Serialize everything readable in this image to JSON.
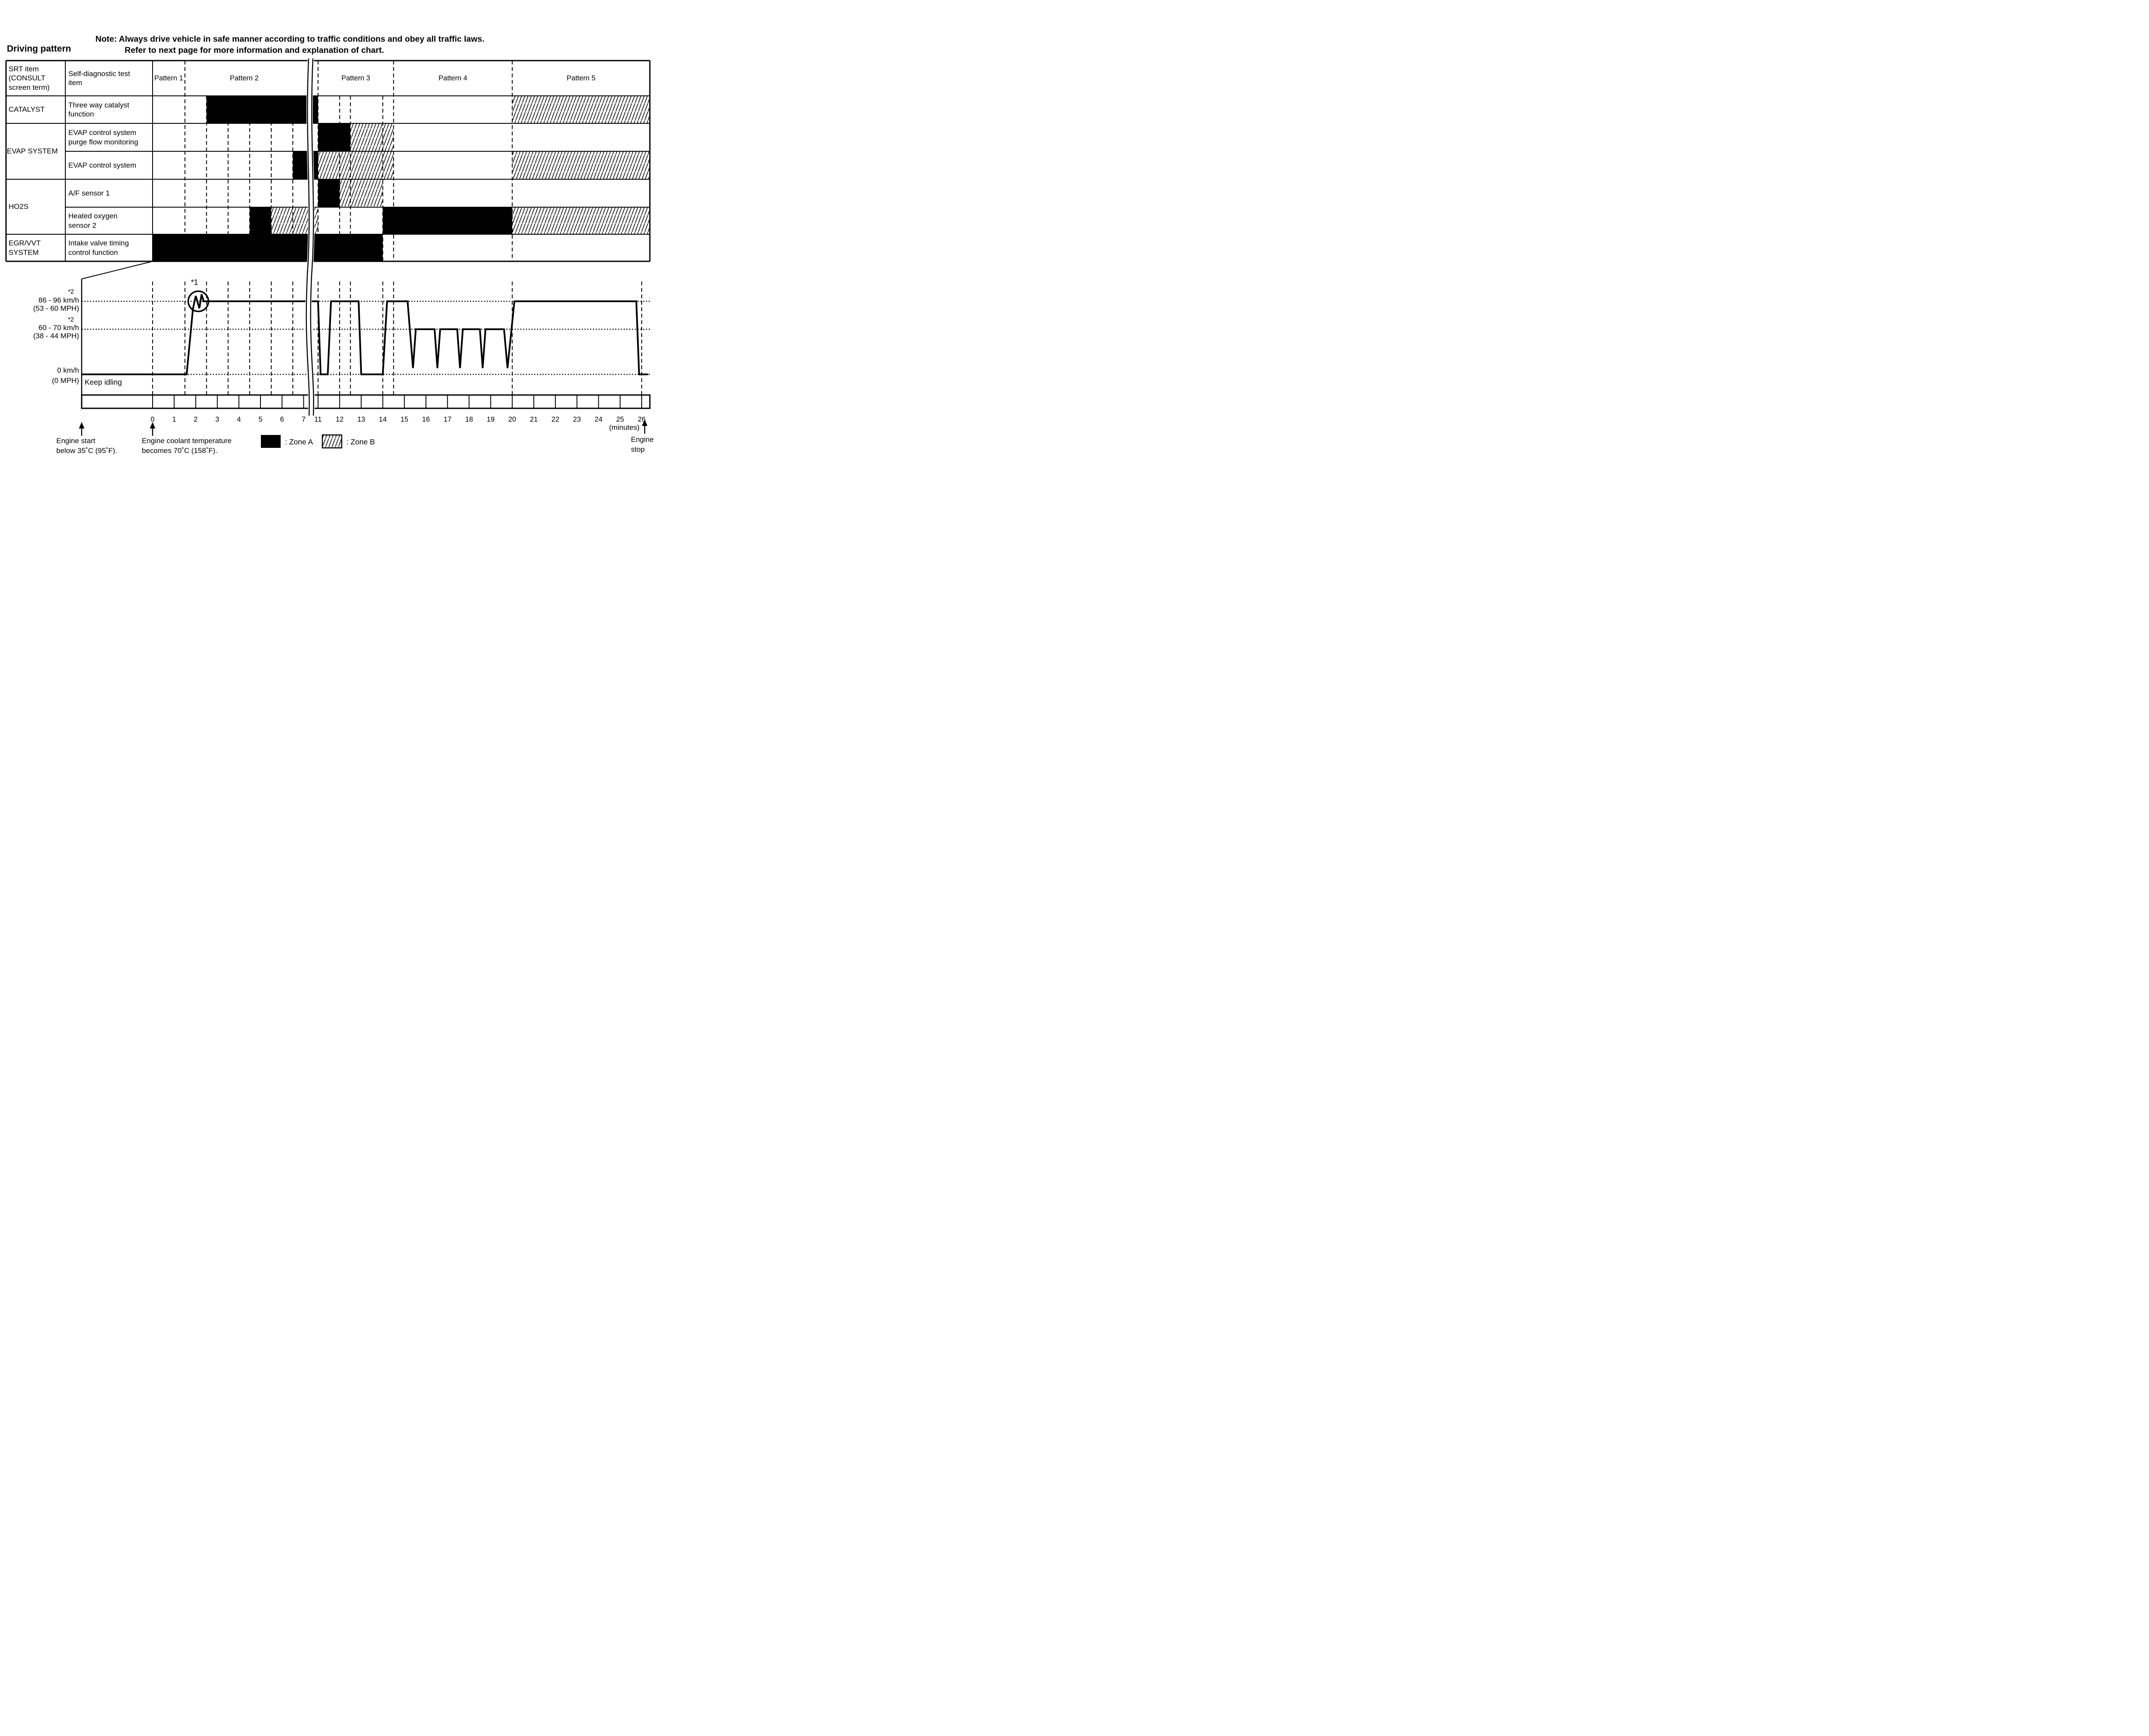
{
  "title": "Driving pattern",
  "note": {
    "line1": "Note: Always drive vehicle in safe manner according to traffic conditions and obey all traffic laws.",
    "line2": "Refer to next page for more information and explanation of chart."
  },
  "table": {
    "headers": {
      "col1": "SRT item\n(CONSULT\nscreen term)",
      "col2": "Self-diagnostic test\nitem"
    },
    "groups": [
      {
        "label": "CATALYST"
      },
      {
        "label": "EVAP SYSTEM"
      },
      {
        "label": "HO2S"
      },
      {
        "label": "EGR/VVT\nSYSTEM"
      }
    ],
    "rows": [
      "Three way catalyst\nfunction",
      "EVAP control system\npurge flow monitoring",
      "EVAP control system",
      "A/F sensor 1",
      "Heated oxygen\nsensor 2",
      "Intake valve timing\ncontrol function"
    ]
  },
  "chart_data": {
    "type": "timeline",
    "x_axis": {
      "unit_label": "(minutes)",
      "ticks": [
        0,
        1,
        2,
        3,
        4,
        5,
        6,
        7,
        11,
        12,
        13,
        14,
        15,
        16,
        17,
        18,
        19,
        20,
        21,
        22,
        23,
        24,
        25,
        26
      ],
      "break_between": [
        7,
        11
      ]
    },
    "patterns": [
      {
        "label": "Pattern 1",
        "from": 0,
        "to": 1.5
      },
      {
        "label": "Pattern 2",
        "from": 1.5,
        "to": 7
      },
      {
        "label": "Pattern 3",
        "from": 11,
        "to": 14.5
      },
      {
        "label": "Pattern 4",
        "from": 14.5,
        "to": 20
      },
      {
        "label": "Pattern 5",
        "from": 20,
        "to": "end"
      }
    ],
    "rows": [
      {
        "row": 0,
        "srt_item": "CATALYST",
        "test_item": "Three way catalyst function",
        "zones": [
          {
            "zone": "A",
            "from": 2.5,
            "to": 11
          },
          {
            "zone": "B",
            "from": 20,
            "to": "end"
          }
        ]
      },
      {
        "row": 1,
        "srt_item": "EVAP SYSTEM",
        "test_item": "EVAP control system purge flow monitoring",
        "zones": [
          {
            "zone": "A",
            "from": 11,
            "to": 12.5
          },
          {
            "zone": "B",
            "from": 12.5,
            "to": 14.5
          }
        ]
      },
      {
        "row": 2,
        "srt_item": "EVAP SYSTEM",
        "test_item": "EVAP control system",
        "zones": [
          {
            "zone": "A",
            "from": 6.5,
            "to": 11
          },
          {
            "zone": "B",
            "from": 11,
            "to": 14.5
          },
          {
            "zone": "B",
            "from": 20,
            "to": "end"
          }
        ]
      },
      {
        "row": 3,
        "srt_item": "HO2S",
        "test_item": "A/F sensor 1",
        "zones": [
          {
            "zone": "A",
            "from": 11,
            "to": 12
          },
          {
            "zone": "B",
            "from": 12,
            "to": 14
          }
        ]
      },
      {
        "row": 4,
        "srt_item": "HO2S",
        "test_item": "Heated oxygen sensor 2",
        "zones": [
          {
            "zone": "A",
            "from": 4.5,
            "to": 5.5
          },
          {
            "zone": "B",
            "from": 5.5,
            "to": 11
          },
          {
            "zone": "A",
            "from": 14,
            "to": 20
          },
          {
            "zone": "B",
            "from": 20,
            "to": "end"
          }
        ]
      },
      {
        "row": 5,
        "srt_item": "EGR/VVT SYSTEM",
        "test_item": "Intake valve timing control function",
        "zones": [
          {
            "zone": "A",
            "from": 0,
            "to": 14
          }
        ]
      }
    ],
    "dashed_gridlines": {
      "table_full_height_minutes": [
        1.5,
        11,
        14.5,
        20
      ],
      "table_body_minutes": [
        2.5,
        3.5,
        4.5,
        5.5,
        6.5,
        12,
        12.5,
        14
      ],
      "graph_minutes": [
        0,
        1.5,
        2.5,
        3.5,
        4.5,
        5.5,
        6.5,
        11,
        12,
        12.5,
        14,
        14.5,
        20,
        26
      ]
    },
    "speed_axis": {
      "high": {
        "sup": "*2",
        "kmh": "86 - 96 km/h",
        "mph": "(53 - 60 MPH)",
        "value": 91
      },
      "mid": {
        "sup": "*2",
        "kmh": "60 - 70 km/h",
        "mph": "(38 - 44 MPH)",
        "value": 65
      },
      "zero": {
        "kmh": "0 km/h",
        "mph": "(0 MPH)",
        "value": 0
      },
      "keep_idling": "Keep idling"
    },
    "speed_profile_points": [
      [
        -3.29,
        0
      ],
      [
        1.58,
        0
      ],
      [
        1.87,
        84
      ],
      [
        2.0,
        96
      ],
      [
        2.17,
        84.5
      ],
      [
        2.27,
        97.5
      ],
      [
        2.37,
        91
      ],
      [
        11.0,
        91
      ],
      [
        11.12,
        0
      ],
      [
        11.45,
        0
      ],
      [
        11.6,
        91
      ],
      [
        12.88,
        91
      ],
      [
        13.0,
        0
      ],
      [
        14.0,
        0
      ],
      [
        14.2,
        91
      ],
      [
        15.15,
        91
      ],
      [
        15.4,
        9
      ],
      [
        15.53,
        65
      ],
      [
        16.4,
        65
      ],
      [
        16.53,
        9
      ],
      [
        16.66,
        65
      ],
      [
        17.45,
        65
      ],
      [
        17.58,
        9
      ],
      [
        17.71,
        65
      ],
      [
        18.5,
        65
      ],
      [
        18.63,
        9
      ],
      [
        18.76,
        65
      ],
      [
        19.62,
        65
      ],
      [
        19.78,
        9
      ],
      [
        20.1,
        91
      ],
      [
        25.75,
        91
      ],
      [
        25.88,
        0
      ],
      [
        26.3,
        0
      ]
    ],
    "fluctuation_marker": {
      "label": "*1",
      "minute": 2.12,
      "at_kmh": 91
    },
    "legend": [
      {
        "zone": "A",
        "label": ": Zone A",
        "fill": "black"
      },
      {
        "zone": "B",
        "label": ": Zone B",
        "fill": "hatch"
      }
    ],
    "annotations": {
      "engine_start": "Engine start\nbelow 35˚C (95˚F).",
      "coolant": "Engine coolant temperature\nbecomes 70˚C (158˚F).",
      "engine_stop": "Engine\nstop",
      "minutes": "(minutes)"
    },
    "colors": {
      "ink": "#000000",
      "paper": "#ffffff"
    }
  }
}
